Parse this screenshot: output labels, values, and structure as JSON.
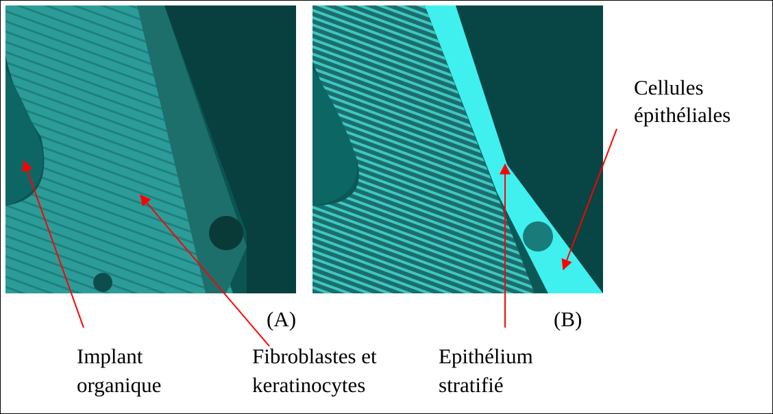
{
  "panels": [
    {
      "label": "(A)"
    },
    {
      "label": "(B)"
    }
  ],
  "annotations": [
    {
      "lines": [
        "Implant",
        "organique"
      ]
    },
    {
      "lines": [
        "Fibroblastes et",
        "keratinocytes"
      ]
    },
    {
      "lines": [
        "Epithélium",
        "stratifié"
      ]
    },
    {
      "lines": [
        "Cellules",
        "épithéliales"
      ]
    }
  ]
}
